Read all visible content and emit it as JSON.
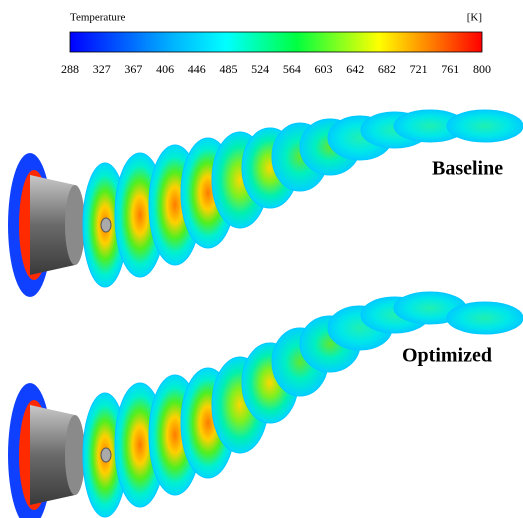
{
  "colorbar": {
    "title": "Temperature",
    "unit": "[K]",
    "ticks": [
      288,
      327,
      367,
      406,
      446,
      485,
      524,
      564,
      603,
      642,
      682,
      721,
      761,
      800
    ]
  },
  "panels": [
    {
      "label": "Baseline"
    },
    {
      "label": "Optimized"
    }
  ]
}
